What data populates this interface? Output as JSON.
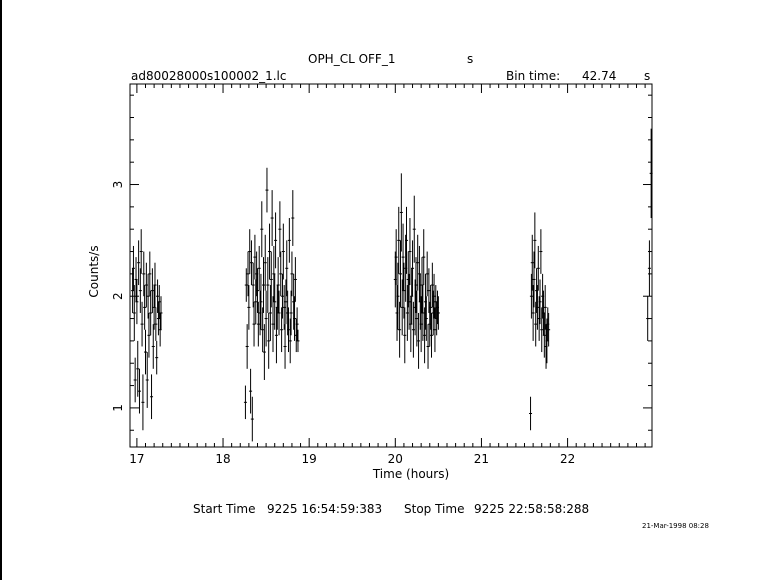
{
  "header": {
    "title": "OPH_CL OFF_1",
    "title_unit": "s",
    "file_name": "ad80028000s100002_1.lc",
    "bin_time_label": "Bin time:",
    "bin_time_value": "42.74",
    "bin_time_unit": "s"
  },
  "footer": {
    "start_label": "Start Time",
    "start_value": "9225 16:54:59:383",
    "stop_label": "Stop Time",
    "stop_value": "9225 22:58:58:288",
    "plot_date": "21-Mar-1998 08:28"
  },
  "chart_data": {
    "type": "scatter",
    "title": "OPH_CL OFF_1",
    "xlabel": "Time (hours)",
    "ylabel": "Counts/s",
    "xlim": [
      16.92,
      22.98
    ],
    "ylim": [
      0.65,
      3.9
    ],
    "x_ticks": [
      17,
      18,
      19,
      20,
      21,
      22
    ],
    "y_ticks": [
      1,
      2,
      3
    ],
    "grid": false,
    "segments": [
      {
        "x": [
          16.95,
          16.96,
          16.97,
          16.98,
          16.99,
          17.0,
          17.01,
          17.02,
          17.03,
          17.04,
          17.05,
          17.06,
          17.07,
          17.08,
          17.09,
          17.1,
          17.11,
          17.12,
          17.13,
          17.14,
          17.15,
          17.16,
          17.17,
          17.18,
          17.19,
          17.2,
          17.21,
          17.22,
          17.23,
          17.24,
          17.25,
          17.26,
          17.27,
          17.28
        ],
        "y": [
          2.05,
          2.25,
          1.85,
          1.25,
          2.15,
          1.95,
          1.35,
          2.3,
          1.15,
          2.05,
          2.4,
          1.75,
          1.05,
          2.2,
          1.9,
          1.5,
          2.1,
          1.25,
          2.0,
          1.65,
          2.2,
          1.85,
          1.1,
          2.05,
          1.55,
          1.9,
          2.1,
          1.75,
          1.45,
          2.0,
          1.8,
          1.95,
          1.7,
          1.85
        ],
        "err": [
          0.2,
          0.2,
          0.25,
          0.2,
          0.2,
          0.2,
          0.25,
          0.2,
          0.2,
          0.2,
          0.2,
          0.2,
          0.25,
          0.2,
          0.2,
          0.2,
          0.2,
          0.25,
          0.2,
          0.2,
          0.2,
          0.2,
          0.2,
          0.2,
          0.2,
          0.2,
          0.2,
          0.15,
          0.15,
          0.15,
          0.15,
          0.15,
          0.15,
          0.15
        ]
      },
      {
        "x": [
          18.26,
          18.27,
          18.28,
          18.29,
          18.3,
          18.31,
          18.32,
          18.33,
          18.34,
          18.35,
          18.36,
          18.37,
          18.38,
          18.39,
          18.4,
          18.41,
          18.42,
          18.43,
          18.44,
          18.45,
          18.46,
          18.47,
          18.48,
          18.49,
          18.5,
          18.51,
          18.52,
          18.53,
          18.54,
          18.55,
          18.56,
          18.57,
          18.58,
          18.59,
          18.6,
          18.61,
          18.62,
          18.63,
          18.64,
          18.65,
          18.66,
          18.67,
          18.68,
          18.69,
          18.7,
          18.71,
          18.72,
          18.73,
          18.74,
          18.75,
          18.76,
          18.77,
          18.78,
          18.79,
          18.8,
          18.81,
          18.82,
          18.83,
          18.84,
          18.85,
          18.86,
          18.87
        ],
        "y": [
          1.05,
          2.1,
          1.55,
          2.2,
          1.9,
          2.4,
          1.15,
          2.3,
          0.9,
          2.1,
          1.75,
          2.35,
          1.95,
          2.2,
          2.05,
          1.75,
          2.25,
          1.85,
          1.95,
          2.6,
          1.7,
          2.1,
          1.5,
          2.3,
          1.8,
          2.95,
          2.1,
          1.6,
          2.4,
          1.85,
          2.15,
          2.7,
          1.75,
          2.2,
          1.95,
          2.5,
          1.65,
          1.9,
          2.1,
          1.85,
          2.6,
          2.2,
          1.7,
          2.0,
          2.4,
          1.9,
          1.55,
          1.95,
          2.25,
          1.85,
          1.7,
          2.5,
          1.6,
          1.85,
          2.2,
          2.7,
          1.95,
          1.8,
          2.15,
          1.65,
          1.75,
          1.6
        ],
        "err": [
          0.15,
          0.15,
          0.2,
          0.2,
          0.2,
          0.2,
          0.2,
          0.2,
          0.2,
          0.2,
          0.2,
          0.2,
          0.2,
          0.2,
          0.2,
          0.2,
          0.2,
          0.2,
          0.25,
          0.25,
          0.2,
          0.25,
          0.25,
          0.25,
          0.25,
          0.2,
          0.25,
          0.25,
          0.25,
          0.25,
          0.25,
          0.25,
          0.25,
          0.25,
          0.25,
          0.25,
          0.25,
          0.2,
          0.25,
          0.2,
          0.25,
          0.2,
          0.2,
          0.2,
          0.25,
          0.2,
          0.2,
          0.2,
          0.25,
          0.2,
          0.2,
          0.2,
          0.2,
          0.2,
          0.2,
          0.25,
          0.25,
          0.2,
          0.2,
          0.15,
          0.15,
          0.1
        ]
      },
      {
        "x": [
          20.0,
          20.01,
          20.02,
          20.03,
          20.04,
          20.05,
          20.06,
          20.07,
          20.08,
          20.09,
          20.1,
          20.11,
          20.12,
          20.13,
          20.14,
          20.15,
          20.16,
          20.17,
          20.18,
          20.19,
          20.2,
          20.21,
          20.22,
          20.23,
          20.24,
          20.25,
          20.26,
          20.27,
          20.28,
          20.29,
          20.3,
          20.31,
          20.32,
          20.33,
          20.34,
          20.35,
          20.36,
          20.37,
          20.38,
          20.39,
          20.4,
          20.41,
          20.42,
          20.43,
          20.44,
          20.45,
          20.46,
          20.47,
          20.48,
          20.49,
          20.5
        ],
        "y": [
          2.15,
          2.35,
          1.85,
          2.0,
          2.5,
          1.7,
          2.2,
          2.75,
          1.9,
          2.35,
          2.05,
          1.65,
          2.25,
          2.5,
          1.85,
          2.15,
          1.95,
          2.4,
          1.75,
          2.0,
          2.25,
          1.7,
          2.6,
          1.9,
          2.1,
          1.8,
          2.3,
          1.6,
          2.2,
          1.95,
          1.75,
          2.1,
          1.85,
          2.35,
          1.65,
          1.95,
          1.8,
          2.2,
          1.55,
          2.05,
          1.75,
          1.9,
          1.65,
          2.1,
          1.85,
          2.0,
          1.7,
          1.95,
          1.8,
          1.9,
          1.85
        ],
        "err": [
          0.25,
          0.25,
          0.25,
          0.3,
          0.3,
          0.25,
          0.3,
          0.35,
          0.25,
          0.3,
          0.25,
          0.25,
          0.3,
          0.3,
          0.25,
          0.25,
          0.25,
          0.3,
          0.25,
          0.25,
          0.25,
          0.25,
          0.3,
          0.25,
          0.25,
          0.25,
          0.25,
          0.25,
          0.25,
          0.25,
          0.25,
          0.25,
          0.25,
          0.25,
          0.25,
          0.25,
          0.2,
          0.2,
          0.2,
          0.2,
          0.2,
          0.2,
          0.2,
          0.2,
          0.2,
          0.2,
          0.2,
          0.15,
          0.15,
          0.15,
          0.15
        ]
      },
      {
        "x": [
          21.57,
          21.58,
          21.59,
          21.6,
          21.61,
          21.62,
          21.63,
          21.64,
          21.65,
          21.66,
          21.67,
          21.68,
          21.69,
          21.7,
          21.71,
          21.72,
          21.73,
          21.74,
          21.75,
          21.76,
          21.77,
          21.78
        ],
        "y": [
          0.95,
          2.0,
          2.3,
          1.85,
          2.15,
          2.5,
          1.75,
          2.05,
          1.9,
          2.25,
          1.8,
          1.95,
          2.4,
          1.7,
          2.0,
          1.85,
          1.65,
          1.9,
          1.55,
          1.6,
          1.75,
          1.7
        ],
        "err": [
          0.15,
          0.2,
          0.25,
          0.25,
          0.25,
          0.25,
          0.2,
          0.2,
          0.2,
          0.2,
          0.2,
          0.2,
          0.2,
          0.2,
          0.2,
          0.2,
          0.2,
          0.2,
          0.2,
          0.2,
          0.15,
          0.15
        ]
      },
      {
        "x": [
          22.93,
          22.95,
          22.97
        ],
        "y": [
          1.8,
          2.25,
          3.1
        ],
        "err": [
          0.2,
          0.25,
          0.4
        ]
      }
    ]
  }
}
